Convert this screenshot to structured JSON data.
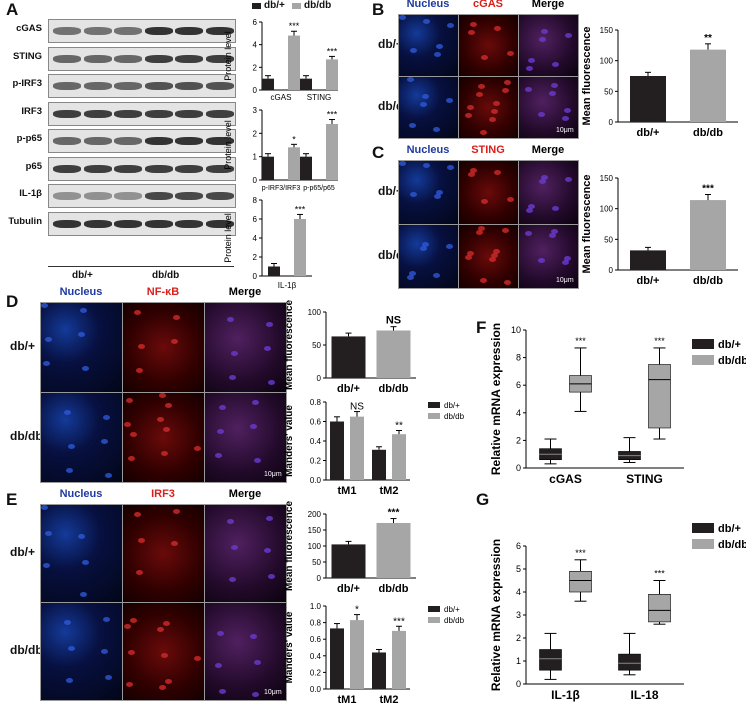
{
  "panels": {
    "A": "A",
    "B": "B",
    "C": "C",
    "D": "D",
    "E": "E",
    "F": "F",
    "G": "G"
  },
  "panelA": {
    "legend": [
      "db/+",
      "db/db"
    ],
    "rows": [
      "cGAS",
      "STING",
      "p-IRF3",
      "IRF3",
      "p-p65",
      "p65",
      "IL-1β",
      "Tubulin"
    ],
    "groups": [
      "db/+",
      "db/db"
    ],
    "chart1": {
      "ylabel": "Protein level",
      "yticks": [
        "0",
        "2",
        "4",
        "6"
      ],
      "ymax": 6,
      "categories": [
        "cGAS",
        "STING"
      ],
      "values": [
        [
          1,
          4.8
        ],
        [
          1,
          2.7
        ]
      ],
      "sig": [
        "***",
        "***"
      ]
    },
    "chart2": {
      "ylabel": "Protein level",
      "yticks": [
        "0",
        "1",
        "2",
        "3"
      ],
      "ymax": 3,
      "categories": [
        "p-IRF3/IRF3",
        "p-p65/p65"
      ],
      "values": [
        [
          1,
          1.4
        ],
        [
          1,
          2.4
        ]
      ],
      "sig": [
        "*",
        "***"
      ]
    },
    "chart3": {
      "ylabel": "Protein level",
      "yticks": [
        "0",
        "2",
        "4",
        "6",
        "8"
      ],
      "ymax": 8,
      "categories": [
        "IL-1β"
      ],
      "values": [
        [
          1,
          6
        ]
      ],
      "sig": [
        "***"
      ]
    }
  },
  "panelB": {
    "cols": [
      "Nucleus",
      "cGAS",
      "Merge"
    ],
    "rows": [
      "db/+",
      "db/db"
    ],
    "scale": "10μm",
    "chart": {
      "ylabel": "Mean fluorescence",
      "yticks": [
        "0",
        "50",
        "100",
        "150"
      ],
      "ymax": 150,
      "categories": [
        "db/+",
        "db/db"
      ],
      "values": [
        75,
        118
      ],
      "sig": "**"
    }
  },
  "panelC": {
    "cols": [
      "Nucleus",
      "STING",
      "Merge"
    ],
    "rows": [
      "db/+",
      "db/db"
    ],
    "scale": "10μm",
    "chart": {
      "ylabel": "Mean fluorescence",
      "yticks": [
        "0",
        "50",
        "100",
        "150"
      ],
      "ymax": 150,
      "categories": [
        "db/+",
        "db/db"
      ],
      "values": [
        32,
        114
      ],
      "sig": "***"
    }
  },
  "panelD": {
    "cols": [
      "Nucleus",
      "NF-κB",
      "Merge"
    ],
    "rows": [
      "db/+",
      "db/db"
    ],
    "scale": "10μm",
    "chart1": {
      "ylabel": "Mean fluorescence",
      "yticks": [
        "0",
        "50",
        "100"
      ],
      "ymax": 100,
      "categories": [
        "db/+",
        "db/db"
      ],
      "values": [
        63,
        72
      ],
      "sig": "NS"
    },
    "chart2": {
      "ylabel": "Manders' value",
      "yticks": [
        "0.0",
        "0.2",
        "0.4",
        "0.6",
        "0.8"
      ],
      "ymax": 0.8,
      "categories": [
        "tM1",
        "tM2"
      ],
      "legend": [
        "db/+",
        "db/db"
      ],
      "values": [
        [
          0.6,
          0.65
        ],
        [
          0.31,
          0.47
        ]
      ],
      "sig": [
        "NS",
        "**"
      ]
    }
  },
  "panelE": {
    "cols": [
      "Nucleus",
      "IRF3",
      "Merge"
    ],
    "rows": [
      "db/+",
      "db/db"
    ],
    "scale": "10μm",
    "chart1": {
      "ylabel": "Mean fluorescence",
      "yticks": [
        "0",
        "50",
        "100",
        "150",
        "200"
      ],
      "ymax": 200,
      "categories": [
        "db/+",
        "db/db"
      ],
      "values": [
        105,
        172
      ],
      "sig": "***"
    },
    "chart2": {
      "ylabel": "Manders' value",
      "yticks": [
        "0.0",
        "0.2",
        "0.4",
        "0.6",
        "0.8",
        "1.0"
      ],
      "ymax": 1.0,
      "categories": [
        "tM1",
        "tM2"
      ],
      "legend": [
        "db/+",
        "db/db"
      ],
      "values": [
        [
          0.73,
          0.83
        ],
        [
          0.44,
          0.7
        ]
      ],
      "sig": [
        "*",
        "***"
      ]
    }
  },
  "panelF": {
    "ylabel": "Relative mRNA expression",
    "yticks": [
      "0",
      "2",
      "4",
      "6",
      "8",
      "10"
    ],
    "ymax": 10,
    "categories": [
      "cGAS",
      "STING"
    ],
    "legend": [
      "db/+",
      "db/db"
    ],
    "boxes": [
      [
        [
          0.3,
          0.6,
          1.0,
          1.4,
          2.1
        ],
        [
          4.1,
          5.5,
          6.1,
          6.7,
          8.7
        ]
      ],
      [
        [
          0.4,
          0.6,
          0.9,
          1.2,
          2.2
        ],
        [
          2.1,
          2.9,
          6.4,
          7.5,
          8.7
        ]
      ]
    ],
    "sig": [
      "***",
      "***"
    ]
  },
  "panelG": {
    "ylabel": "Relative mRNA expression",
    "yticks": [
      "0",
      "1",
      "2",
      "3",
      "4",
      "5",
      "6"
    ],
    "ymax": 6,
    "categories": [
      "IL-1β",
      "IL-18"
    ],
    "legend": [
      "db/+",
      "db/db"
    ],
    "boxes": [
      [
        [
          0.2,
          0.6,
          1.1,
          1.5,
          2.2
        ],
        [
          3.6,
          4.0,
          4.5,
          4.9,
          5.4
        ]
      ],
      [
        [
          0.4,
          0.6,
          0.9,
          1.3,
          2.2
        ],
        [
          2.6,
          2.7,
          3.2,
          3.9,
          4.5
        ]
      ]
    ],
    "sig": [
      "***",
      "***"
    ]
  },
  "colors": {
    "dark": "#231f20",
    "grey": "#a6a6a6",
    "blue": "#1f3a9e",
    "red": "#d9201c"
  }
}
